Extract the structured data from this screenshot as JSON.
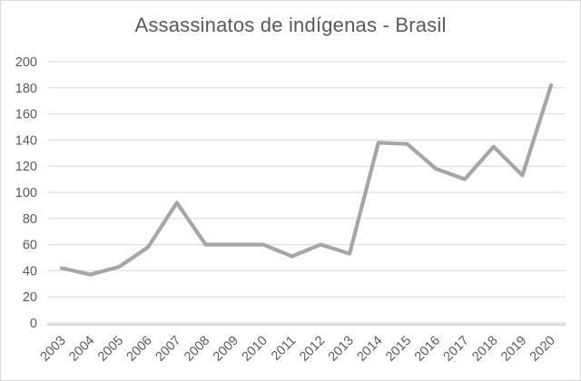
{
  "chart_data": {
    "type": "line",
    "title": "Assassinatos de indígenas - Brasil",
    "categories": [
      "2003",
      "2004",
      "2005",
      "2006",
      "2007",
      "2008",
      "2009",
      "2010",
      "2011",
      "2012",
      "2013",
      "2014",
      "2015",
      "2016",
      "2017",
      "2018",
      "2019",
      "2020"
    ],
    "values": [
      42,
      37,
      43,
      58,
      92,
      60,
      60,
      60,
      51,
      60,
      53,
      138,
      137,
      118,
      110,
      135,
      113,
      182
    ],
    "xlabel": "",
    "ylabel": "",
    "ylim": [
      0,
      200
    ],
    "ytick_step": 20,
    "grid": true,
    "legend_position": "none",
    "colors": {
      "line": "#a6a6a6",
      "gridline": "#d9d9d9",
      "axis_line": "#bfbfbf",
      "text": "#595959",
      "background": "#ffffff",
      "frame_border": "#d9d9d9"
    }
  }
}
